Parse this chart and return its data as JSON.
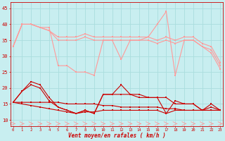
{
  "background_color": "#c8eef0",
  "grid_color": "#aadddd",
  "x_values": [
    0,
    1,
    2,
    3,
    4,
    5,
    6,
    7,
    8,
    9,
    10,
    11,
    12,
    13,
    14,
    15,
    16,
    17,
    18,
    19,
    20,
    21,
    22,
    23
  ],
  "series_light": [
    [
      33,
      40,
      40,
      39,
      39,
      27,
      27,
      25,
      25,
      24,
      35,
      35,
      29,
      35,
      35,
      36,
      40,
      44,
      24,
      35,
      35,
      33,
      31,
      26
    ],
    [
      33,
      40,
      40,
      39,
      38,
      35,
      35,
      35,
      36,
      35,
      35,
      35,
      35,
      35,
      35,
      35,
      34,
      35,
      34,
      35,
      35,
      33,
      32,
      27
    ],
    [
      33,
      40,
      40,
      39,
      38,
      36,
      36,
      36,
      37,
      36,
      36,
      36,
      36,
      36,
      36,
      36,
      35,
      36,
      35,
      36,
      36,
      34,
      33,
      28
    ]
  ],
  "series_dark": [
    [
      15.5,
      19,
      22,
      21,
      17,
      14,
      13,
      12,
      13,
      12,
      18,
      18,
      21,
      18,
      18,
      17,
      17,
      12,
      16,
      15,
      15,
      13,
      15,
      13
    ],
    [
      15.5,
      19,
      21,
      20,
      16,
      14,
      13,
      12,
      13,
      12,
      18,
      18,
      18,
      18,
      17,
      17,
      17,
      17,
      15,
      15,
      15,
      13,
      14,
      13
    ],
    [
      15.5,
      15.5,
      15.5,
      15.5,
      15.5,
      15.5,
      15,
      15,
      15,
      15,
      14.5,
      14.5,
      14,
      14,
      14,
      14,
      14,
      13.5,
      13.5,
      13,
      13,
      13,
      13,
      13
    ],
    [
      15.5,
      15,
      14.5,
      14,
      13.5,
      13,
      12.5,
      12,
      12.5,
      12.5,
      13,
      13,
      13,
      13,
      13,
      13,
      13,
      12,
      13,
      13,
      13,
      13,
      13,
      13
    ]
  ],
  "light_color": "#ff9999",
  "dark_color": "#cc0000",
  "xlabel": "Vent moyen/en rafales ( km/h )",
  "ylim": [
    8,
    47
  ],
  "yticks": [
    10,
    15,
    20,
    25,
    30,
    35,
    40,
    45
  ],
  "xlim": [
    -0.3,
    23.3
  ],
  "marker_size": 2.0,
  "line_width": 0.8
}
